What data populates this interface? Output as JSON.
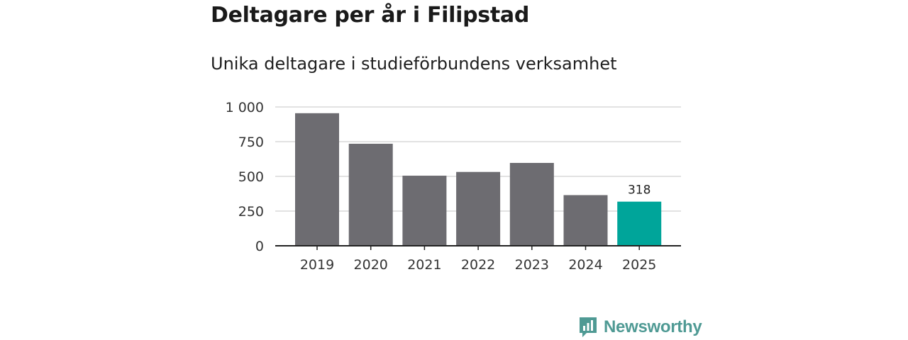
{
  "title": "Deltagare per år i Filipstad",
  "subtitle": "Unika deltagare i studieförbundens verksamhet",
  "brand": {
    "name": "Newsworthy",
    "color": "#4f9a94"
  },
  "colors": {
    "bar": "#6d6c71",
    "highlight": "#00a59a",
    "grid": "#d9d9d9",
    "axis": "#222222"
  },
  "chart_data": {
    "type": "bar",
    "categories": [
      "2019",
      "2020",
      "2021",
      "2022",
      "2023",
      "2024",
      "2025"
    ],
    "values": [
      955,
      735,
      505,
      532,
      597,
      365,
      318
    ],
    "highlight_index": 6,
    "data_labels": {
      "6": "318"
    },
    "yticks": [
      0,
      250,
      500,
      750,
      1000
    ],
    "ytick_labels": [
      "0",
      "250",
      "500",
      "750",
      "1 000"
    ],
    "ylim": [
      0,
      1000
    ],
    "grid": true,
    "legend": "none",
    "xlabel": "",
    "ylabel": ""
  }
}
